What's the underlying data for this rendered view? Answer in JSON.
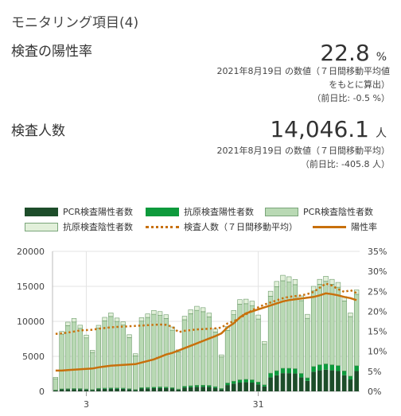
{
  "section": {
    "title": "モニタリング項目(4)"
  },
  "positivity": {
    "label": "検査の陽性率",
    "value": "22.8",
    "unit": "%",
    "note_line1": "2021年8月19日 の数値（７日間移動平均値",
    "note_line2": "をもとに算出）",
    "diff": "（前日比: -0.5 %）"
  },
  "tests": {
    "label": "検査人数",
    "value": "14,046.1",
    "unit": "人",
    "note_line1": "2021年8月19日 の数値（７日間移動平均）",
    "diff": "（前日比: -405.8 人）"
  },
  "colors": {
    "pcr_positive": "#1d4d2a",
    "antigen_positive": "#0e9a3c",
    "pcr_negative": "#b9d9b4",
    "antigen_negative": "#e2f0da",
    "bar_stroke": "#6a9a68",
    "tests_avg": "#c8700c",
    "positivity": "#c8700c",
    "grid": "#e3e3e3"
  },
  "chart_data": {
    "type": "bar",
    "legend": [
      "PCR検査陽性者数",
      "抗原検査陽性者数",
      "PCR検査陰性者数",
      "抗原検査陰性者数",
      "検査人数（７日間移動平均）",
      "陽性率"
    ],
    "y_left": {
      "min": 0,
      "max": 20000,
      "ticks": [
        "0",
        "5000",
        "10000",
        "15000",
        "20000"
      ]
    },
    "y_right": {
      "min": 0,
      "max": 35,
      "ticks": [
        "0%",
        "5%",
        "10%",
        "15%",
        "20%",
        "25%",
        "30%",
        "35%"
      ]
    },
    "x_ticks": [
      {
        "label": "3",
        "index": 5
      },
      {
        "label": "31",
        "index": 33
      }
    ],
    "days": 50,
    "series": [
      {
        "name": "PCR検査陽性者数",
        "values": [
          150,
          280,
          300,
          320,
          310,
          260,
          200,
          330,
          360,
          380,
          370,
          360,
          300,
          200,
          400,
          420,
          460,
          480,
          470,
          400,
          240,
          550,
          600,
          650,
          660,
          640,
          500,
          300,
          900,
          1100,
          1250,
          1300,
          1250,
          1000,
          700,
          2000,
          2300,
          2600,
          2600,
          2550,
          2000,
          1500,
          2800,
          3000,
          3100,
          3000,
          2900,
          2300,
          1700,
          2900
        ]
      },
      {
        "name": "抗原検査陽性者数",
        "values": [
          50,
          80,
          90,
          90,
          90,
          80,
          60,
          100,
          110,
          120,
          120,
          110,
          90,
          70,
          130,
          140,
          150,
          160,
          150,
          130,
          90,
          180,
          200,
          220,
          220,
          210,
          170,
          110,
          300,
          350,
          400,
          420,
          400,
          330,
          230,
          600,
          650,
          700,
          700,
          690,
          560,
          430,
          750,
          800,
          820,
          800,
          780,
          620,
          480,
          760
        ]
      },
      {
        "name": "PCR検査陰性者数",
        "values": [
          1600,
          7800,
          9000,
          9500,
          8600,
          7300,
          5300,
          8600,
          9600,
          10200,
          9500,
          9000,
          7300,
          4800,
          9500,
          10000,
          10400,
          10200,
          9800,
          8200,
          5300,
          9500,
          10300,
          10700,
          10500,
          9800,
          7800,
          4500,
          7500,
          9500,
          10800,
          10800,
          10600,
          9000,
          5800,
          11000,
          12000,
          12500,
          12300,
          12000,
          10400,
          8500,
          10800,
          11500,
          11800,
          11500,
          11200,
          10000,
          8500,
          10200
        ]
      },
      {
        "name": "抗原検査陰性者数",
        "values": [
          200,
          400,
          500,
          500,
          450,
          400,
          300,
          400,
          500,
          500,
          480,
          450,
          400,
          300,
          500,
          500,
          550,
          550,
          520,
          470,
          300,
          500,
          550,
          580,
          570,
          530,
          430,
          300,
          550,
          600,
          650,
          650,
          630,
          570,
          400,
          700,
          750,
          780,
          770,
          750,
          670,
          570,
          650,
          700,
          720,
          700,
          680,
          630,
          520,
          630
        ]
      },
      {
        "name": "検査人数（７日間移動平均）",
        "values": [
          8200,
          8300,
          8400,
          8550,
          8700,
          8750,
          8800,
          8950,
          9050,
          9150,
          9200,
          9250,
          9300,
          9350,
          9400,
          9450,
          9500,
          9550,
          9500,
          9250,
          8450,
          8650,
          8750,
          8850,
          8900,
          8950,
          9000,
          9100,
          9700,
          10000,
          10500,
          11000,
          11600,
          12000,
          12400,
          12700,
          13000,
          13300,
          13500,
          13600,
          13700,
          13900,
          14200,
          14800,
          15400,
          15100,
          14600,
          14200,
          14450,
          14050
        ]
      },
      {
        "name": "陽性率",
        "values": [
          5.2,
          5.2,
          5.3,
          5.4,
          5.5,
          5.6,
          5.7,
          6.0,
          6.2,
          6.4,
          6.5,
          6.6,
          6.7,
          6.8,
          7.2,
          7.6,
          8.0,
          8.6,
          9.2,
          9.6,
          10.2,
          10.8,
          11.4,
          12.0,
          12.6,
          13.2,
          13.8,
          14.5,
          16.0,
          17.0,
          18.5,
          19.5,
          20.0,
          20.5,
          21.0,
          21.5,
          22.0,
          22.5,
          22.8,
          23.0,
          23.2,
          23.4,
          23.6,
          24.0,
          24.5,
          24.3,
          24.0,
          23.6,
          23.3,
          22.8
        ]
      }
    ]
  }
}
